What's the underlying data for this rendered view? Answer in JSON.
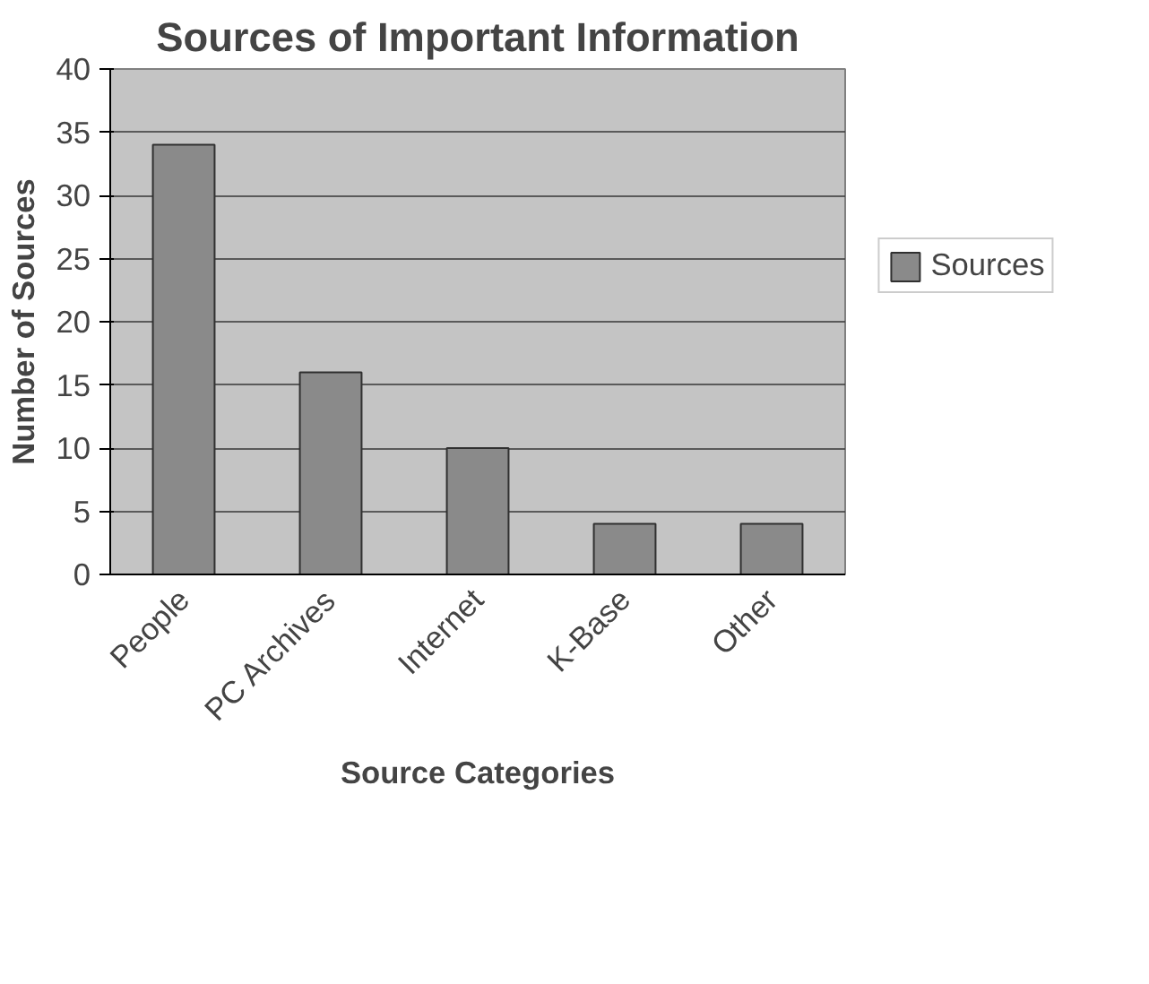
{
  "chart_data": {
    "type": "bar",
    "title": "Sources of Important Information",
    "xlabel": "Source Categories",
    "ylabel": "Number of Sources",
    "categories": [
      "People",
      "PC Archives",
      "Internet",
      "K-Base",
      "Other"
    ],
    "series": [
      {
        "name": "Sources",
        "color": "#8a8a8a",
        "values": [
          34,
          16,
          10,
          4,
          4
        ]
      }
    ],
    "ylim": [
      0,
      40
    ],
    "yticks": [
      0,
      5,
      10,
      15,
      20,
      25,
      30,
      35,
      40
    ],
    "grid": "y",
    "legend": "right"
  }
}
